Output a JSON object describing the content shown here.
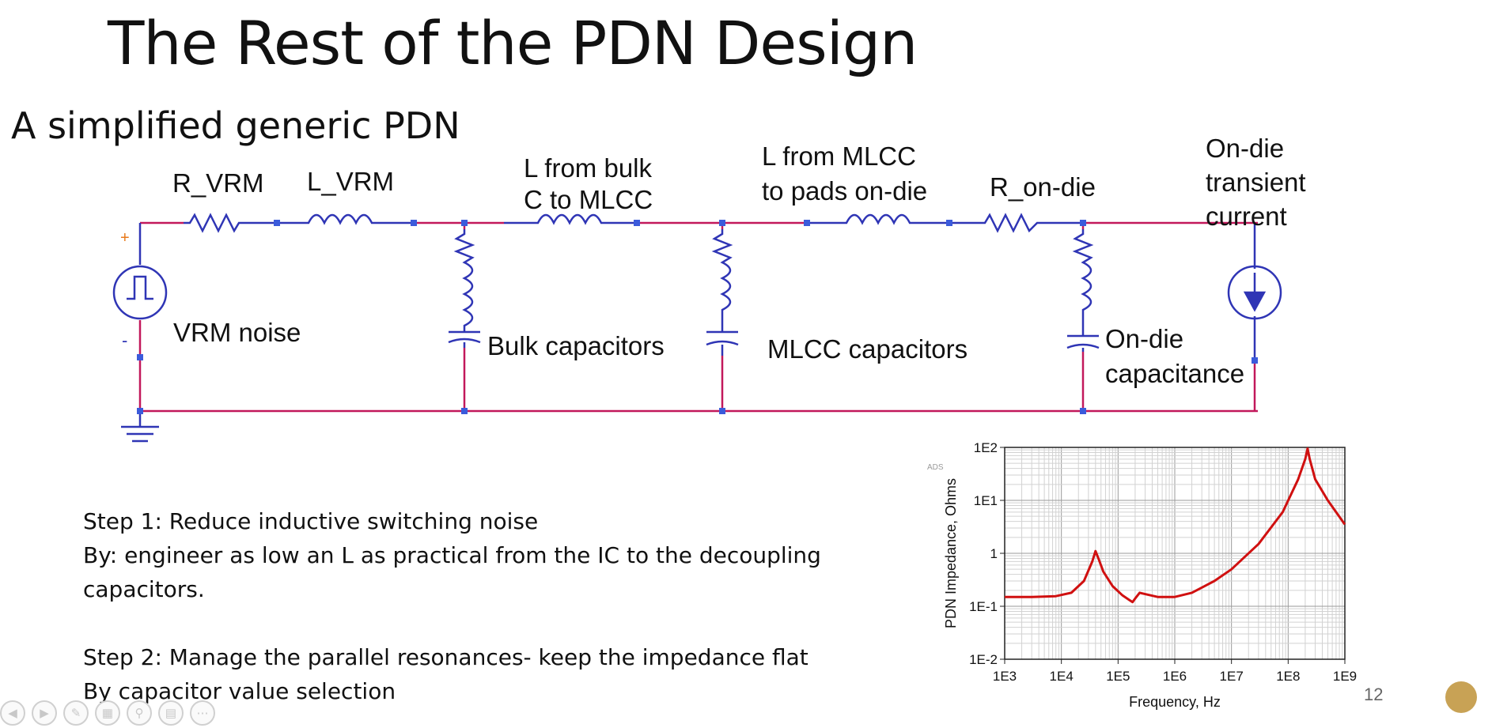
{
  "slide": {
    "title": "The Rest of the PDN Design",
    "subtitle": "A simplified generic PDN",
    "page_number": "12"
  },
  "schematic": {
    "labels": {
      "r_vrm": "R_VRM",
      "l_vrm": "L_VRM",
      "l_bulk_1": "L from bulk",
      "l_bulk_2": "C to MLCC",
      "l_mlcc_1": "L from MLCC",
      "l_mlcc_2": "to pads on-die",
      "r_ondie": "R_on-die",
      "transient_1": "On-die",
      "transient_2": "transient",
      "transient_3": "current",
      "vrm_noise": "VRM noise",
      "bulk_caps": "Bulk capacitors",
      "mlcc_caps": "MLCC capacitors",
      "ondie_cap_1": "On-die",
      "ondie_cap_2": "capacitance",
      "plus": "+",
      "minus": "-"
    },
    "colors": {
      "wire": "#c2185b",
      "component": "#2f35b5",
      "node": "#3b5bdb",
      "source_plus": "#e8791a"
    }
  },
  "steps": {
    "step1_line1": "Step 1: Reduce inductive switching noise",
    "step1_line2": "By: engineer as low an L as practical from the IC to the decoupling",
    "step1_line3": "capacitors.",
    "step2_line1": "Step 2: Manage the parallel resonances- keep the impedance flat",
    "step2_line2": "By capacitor value selection"
  },
  "chart_data": {
    "type": "line",
    "watermark": "ADS",
    "xlabel": "Frequency, Hz",
    "ylabel": "PDN Impedance, Ohms",
    "x_scale": "log",
    "y_scale": "log",
    "xlim": [
      1000,
      1000000000
    ],
    "ylim": [
      0.01,
      100
    ],
    "x_ticks": [
      "1E3",
      "1E4",
      "1E5",
      "1E6",
      "1E7",
      "1E8",
      "1E9"
    ],
    "y_ticks": [
      "1E-2",
      "1E-1",
      "1",
      "1E1",
      "1E2"
    ],
    "grid": true,
    "line_color": "#d01010",
    "series": [
      {
        "x": [
          1000,
          3000,
          8000,
          15000,
          25000,
          35000,
          40000,
          45000,
          55000,
          80000,
          120000,
          160000,
          180000,
          200000,
          240000,
          300000,
          500000,
          1000000,
          2000000,
          5000000,
          10000000,
          30000000,
          80000000,
          150000000,
          200000000,
          220000000,
          240000000,
          300000000,
          500000000,
          1000000000
        ],
        "y": [
          0.15,
          0.15,
          0.155,
          0.18,
          0.3,
          0.7,
          1.1,
          0.8,
          0.45,
          0.24,
          0.16,
          0.13,
          0.12,
          0.14,
          0.18,
          0.17,
          0.15,
          0.15,
          0.18,
          0.3,
          0.5,
          1.5,
          6,
          25,
          60,
          95,
          60,
          25,
          10,
          3.5
        ]
      }
    ]
  },
  "toolbar": {
    "icons": [
      "prev-icon",
      "next-icon",
      "pen-icon",
      "slides-icon",
      "zoom-icon",
      "subtitles-icon",
      "more-icon"
    ]
  }
}
